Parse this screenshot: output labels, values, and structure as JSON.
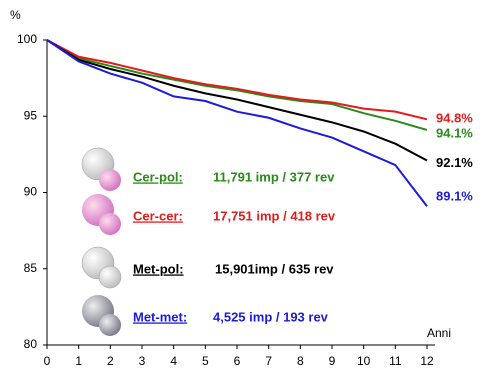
{
  "chart_data": {
    "type": "line",
    "y_label": "%",
    "x_label": "Anni",
    "x": [
      0,
      1,
      2,
      3,
      4,
      5,
      6,
      7,
      8,
      9,
      10,
      11,
      12
    ],
    "xlim": [
      0,
      12
    ],
    "xticks": [
      0,
      1,
      2,
      3,
      4,
      5,
      6,
      7,
      8,
      9,
      10,
      11,
      12
    ],
    "ylim": [
      80,
      100
    ],
    "yticks": [
      80,
      85,
      90,
      95,
      100
    ],
    "grid": false,
    "series": [
      {
        "name": "Cer-pol:",
        "detail": "11,791 imp / 377 rev",
        "color": "#2a8a1a",
        "values": [
          100,
          98.8,
          98.3,
          97.8,
          97.4,
          97.0,
          96.7,
          96.3,
          96.0,
          95.8,
          95.2,
          94.7,
          94.1
        ],
        "end_label": "94.1%"
      },
      {
        "name": "Cer-cer:",
        "detail": "17,751 imp / 418 rev",
        "color": "#e41b1b",
        "values": [
          100,
          98.9,
          98.5,
          98.0,
          97.5,
          97.1,
          96.8,
          96.4,
          96.1,
          95.9,
          95.5,
          95.3,
          94.8
        ],
        "end_label": "94.8%"
      },
      {
        "name": "Met-pol:",
        "detail": "15,901imp / 635 rev",
        "color": "#000000",
        "values": [
          100,
          98.7,
          98.1,
          97.6,
          97.0,
          96.5,
          96.1,
          95.6,
          95.1,
          94.6,
          94.0,
          93.2,
          92.1
        ],
        "end_label": "92.1%"
      },
      {
        "name": "Met-met:",
        "detail": "4,525 imp / 193 rev",
        "color": "#1c1cd8",
        "values": [
          100,
          98.6,
          97.8,
          97.2,
          96.3,
          96.0,
          95.3,
          94.9,
          94.2,
          93.6,
          92.7,
          91.8,
          89.1
        ],
        "end_label": "89.1%"
      }
    ]
  }
}
